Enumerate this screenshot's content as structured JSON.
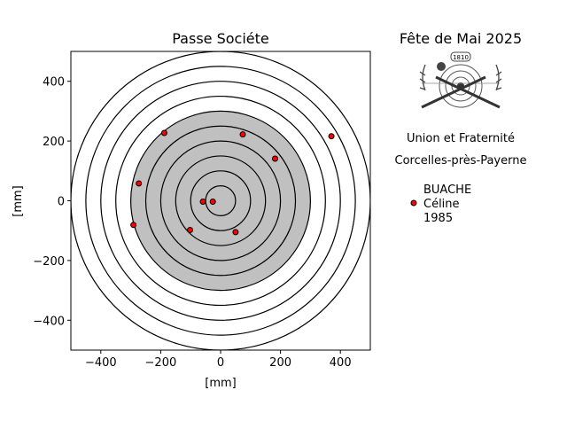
{
  "chart_data": {
    "type": "scatter",
    "title": "Passe Sociéte",
    "xlabel": "[mm]",
    "ylabel": "[mm]",
    "xlim": [
      -500,
      500
    ],
    "ylim": [
      -500,
      500
    ],
    "xticks": [
      -400,
      -200,
      0,
      200,
      400
    ],
    "yticks": [
      -400,
      -200,
      0,
      200,
      400
    ],
    "xtick_labels": [
      "−400",
      "−200",
      "0",
      "200",
      "400"
    ],
    "ytick_labels": [
      "−400",
      "−200",
      "0",
      "200",
      "400"
    ],
    "grid": false,
    "target": {
      "ring_radii": [
        50,
        100,
        150,
        200,
        250,
        300,
        350,
        400,
        450,
        500
      ],
      "black_radius": 300,
      "black_color": "#c0c0c0",
      "ring_color": "#000000"
    },
    "series": [
      {
        "name": "BUACHE\nCéline\n1985",
        "color": "#ff0000",
        "edge_color": "#000000",
        "points": [
          {
            "x": -188,
            "y": 227
          },
          {
            "x": 74,
            "y": 222
          },
          {
            "x": 370,
            "y": 216
          },
          {
            "x": 182,
            "y": 141
          },
          {
            "x": -273,
            "y": 58
          },
          {
            "x": -59,
            "y": -3
          },
          {
            "x": -26,
            "y": -3
          },
          {
            "x": -291,
            "y": -81
          },
          {
            "x": -102,
            "y": -98
          },
          {
            "x": 50,
            "y": -105
          }
        ]
      }
    ],
    "legend": {
      "placement": "right",
      "lines": [
        "BUACHE",
        "Céline",
        "1985"
      ]
    }
  },
  "side_panel": {
    "event_title": "Fête de Mai 2025",
    "logo_text": "1810",
    "society": "Union et Fraternité",
    "location": "Corcelles-près-Payerne"
  }
}
